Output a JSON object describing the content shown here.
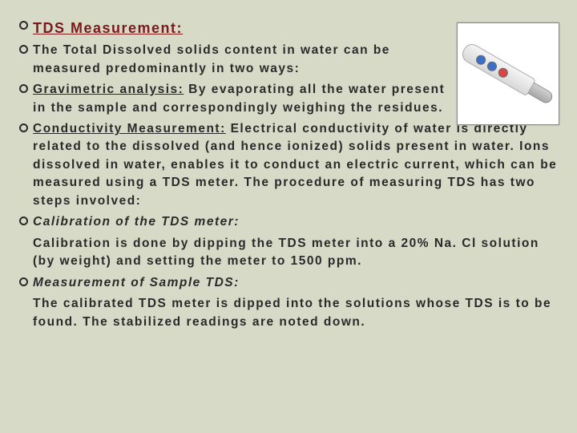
{
  "title": "TDS Measurement:",
  "p1": "The Total Dissolved solids content in water can be measured predominantly in two ways:",
  "grav_label": "Gravimetric analysis:",
  "grav_rest": " By evaporating all the water present in the sample and correspondingly weighing the residues.",
  "cond_label": "Conductivity Measurement:",
  "cond_rest": " Electrical conductivity of water is directly related to the dissolved (and hence ionized) solids present in water. Ions dissolved in water, enables it to conduct an electric current, which can be measured using a TDS meter. The procedure of measuring TDS has two steps involved:",
  "calib_label": "Calibration of the TDS meter:",
  "calib_body": "Calibration is done by dipping the TDS meter into a 20% Na. Cl solution (by weight) and setting the meter to 1500 ppm.",
  "meas_label": "Measurement of Sample TDS:",
  "meas_body": "The calibrated TDS meter is dipped into the solutions whose TDS is to be found. The stabilized readings are noted down.",
  "image_alt": "tds-meter"
}
